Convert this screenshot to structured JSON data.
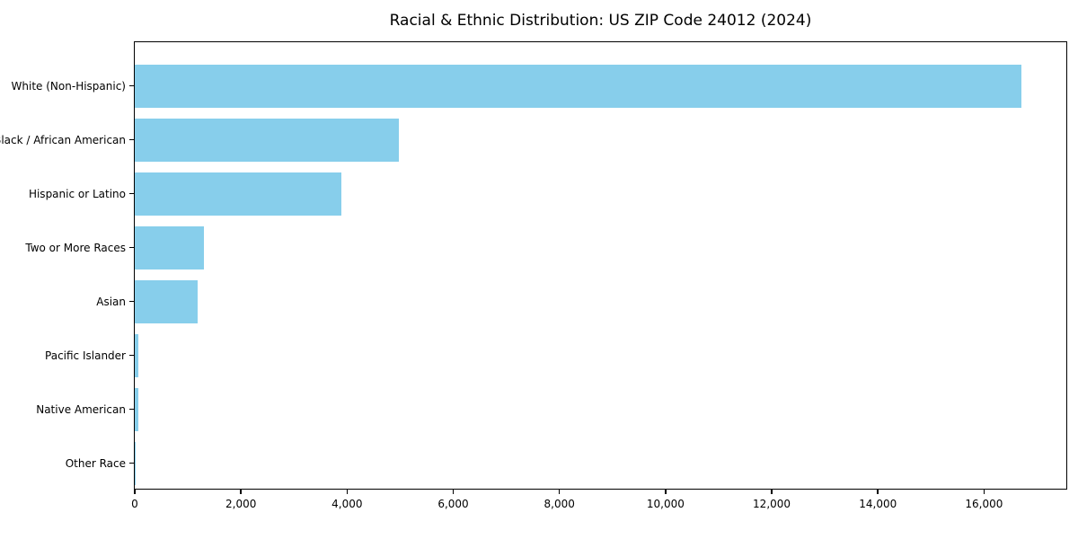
{
  "chart_data": {
    "type": "bar",
    "orientation": "horizontal",
    "title": "Racial & Ethnic Distribution: US ZIP Code 24012 (2024)",
    "categories": [
      "White (Non-Hispanic)",
      "Black / African American",
      "Hispanic or Latino",
      "Two or More Races",
      "Asian",
      "Pacific Islander",
      "Native American",
      "Other Race"
    ],
    "values": [
      16700,
      4980,
      3900,
      1300,
      1180,
      75,
      65,
      10
    ],
    "xlabel": "",
    "ylabel": "",
    "xlim": [
      0,
      17550
    ],
    "x_ticks": [
      0,
      2000,
      4000,
      6000,
      8000,
      10000,
      12000,
      14000,
      16000
    ],
    "bar_color": "#87CEEB",
    "axis_color": "#000000",
    "background_color": "#ffffff",
    "grid": false,
    "legend": null
  }
}
